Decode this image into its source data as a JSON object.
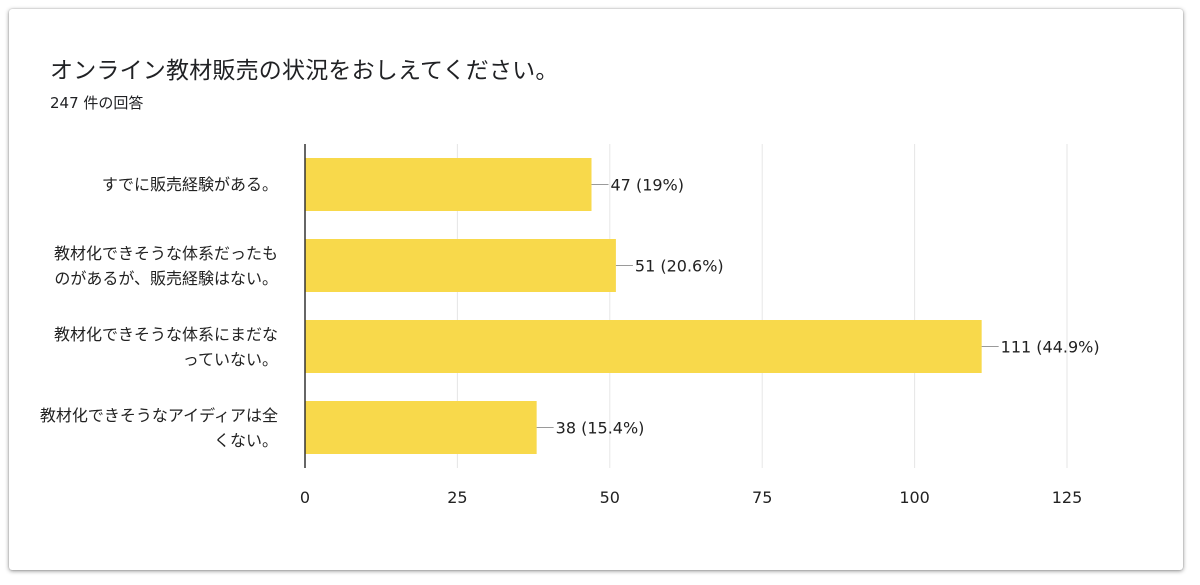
{
  "title": "オンライン教材販売の状況をおしえてください。",
  "subtitle": "247 件の回答",
  "colors": {
    "bar": "#f8d94b",
    "grid": "#e6e6e6",
    "axis": "#333333",
    "text": "#222222"
  },
  "chart_data": {
    "type": "bar",
    "orientation": "horizontal",
    "categories": [
      "すでに販売経験がある。",
      "教材化できそうな体系だったものがあるが、販売経験はない。",
      "教材化できそうな体系にまだなっていない。",
      "教材化できそうなアイディアは全くない。"
    ],
    "category_lines": [
      [
        "すでに販売経験がある。"
      ],
      [
        "教材化できそうな体系だったも",
        "のがあるが、販売経験はない。"
      ],
      [
        "教材化できそうな体系にまだな",
        "っていない。"
      ],
      [
        "教材化できそうなアイディアは全",
        "くない。"
      ]
    ],
    "values": [
      47,
      51,
      111,
      38
    ],
    "data_labels": [
      "47 (19%)",
      "51 (20.6%)",
      "111 (44.9%)",
      "38 (15.4%)"
    ],
    "x_ticks": [
      "0",
      "25",
      "50",
      "75",
      "100",
      "125"
    ],
    "xlim": [
      0,
      125
    ],
    "grid": true,
    "legend": "none"
  }
}
